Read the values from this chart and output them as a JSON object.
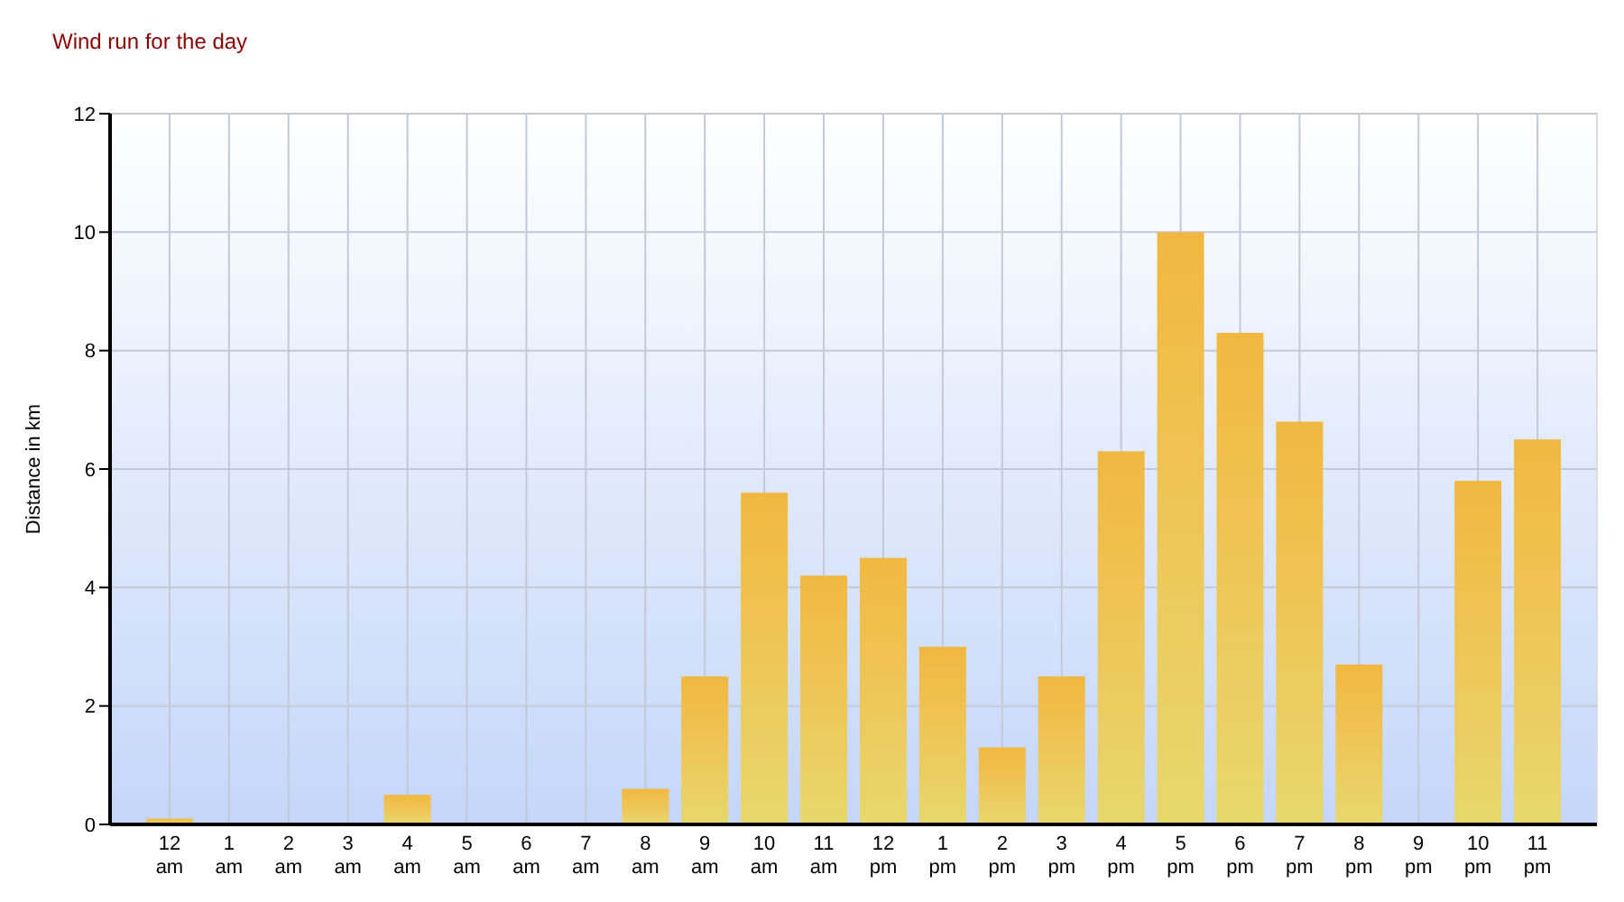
{
  "chart_data": {
    "type": "bar",
    "title": "Wind run for the day",
    "ylabel": "Distance in km",
    "categories": [
      "12 am",
      "1 am",
      "2 am",
      "3 am",
      "4 am",
      "5 am",
      "6 am",
      "7 am",
      "8 am",
      "9 am",
      "10 am",
      "11 am",
      "12 pm",
      "1 pm",
      "2 pm",
      "3 pm",
      "4 pm",
      "5 pm",
      "6 pm",
      "7 pm",
      "8 pm",
      "9 pm",
      "10 pm",
      "11 pm"
    ],
    "values": [
      0.1,
      0,
      0,
      0,
      0.5,
      0,
      0,
      0,
      0.6,
      2.5,
      5.6,
      4.2,
      4.5,
      3.0,
      1.3,
      2.5,
      6.3,
      10.0,
      8.3,
      6.8,
      2.7,
      0,
      5.8,
      6.5
    ],
    "color": "#eec658",
    "ylim": [
      0,
      12
    ],
    "yticks": [
      0,
      2,
      4,
      6,
      8,
      10,
      12
    ],
    "grid": true
  }
}
